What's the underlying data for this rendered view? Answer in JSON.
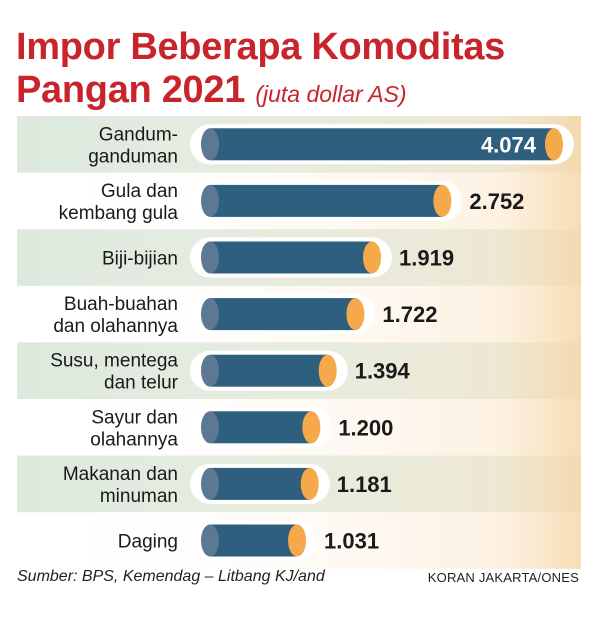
{
  "title_line1": "Impor Beberapa Komoditas",
  "title_line2": "Pangan 2021",
  "unit": "(juta dollar AS)",
  "source": "Sumber: BPS, Kemendag – Litbang KJ/and",
  "credit": "KORAN JAKARTA/ONES",
  "colors": {
    "bar": "#2f5f7e",
    "bar_start": "#5c7893",
    "bar_end": "#f5a94a",
    "row_band": "#dde9dc",
    "title": "#c8242b"
  },
  "chart_data": {
    "type": "bar",
    "orientation": "horizontal",
    "title": "Impor Beberapa Komoditas Pangan 2021",
    "unit": "(juta dollar AS)",
    "categories": [
      [
        "Gandum-",
        "ganduman"
      ],
      [
        "Gula dan",
        "kembang gula"
      ],
      [
        "Biji-bijian"
      ],
      [
        "Buah-buahan",
        "dan olahannya"
      ],
      [
        "Susu, mentega",
        "dan telur"
      ],
      [
        "Sayur dan",
        "olahannya"
      ],
      [
        "Makanan dan",
        "minuman"
      ],
      [
        "Daging"
      ]
    ],
    "values": [
      4074,
      2752,
      1919,
      1722,
      1394,
      1200,
      1181,
      1031
    ],
    "value_labels": [
      "4.074",
      "2.752",
      "1.919",
      "1.722",
      "1.394",
      "1.200",
      "1.181",
      "1.031"
    ],
    "xlim": [
      0,
      4074
    ],
    "grid": false,
    "legend": false
  }
}
